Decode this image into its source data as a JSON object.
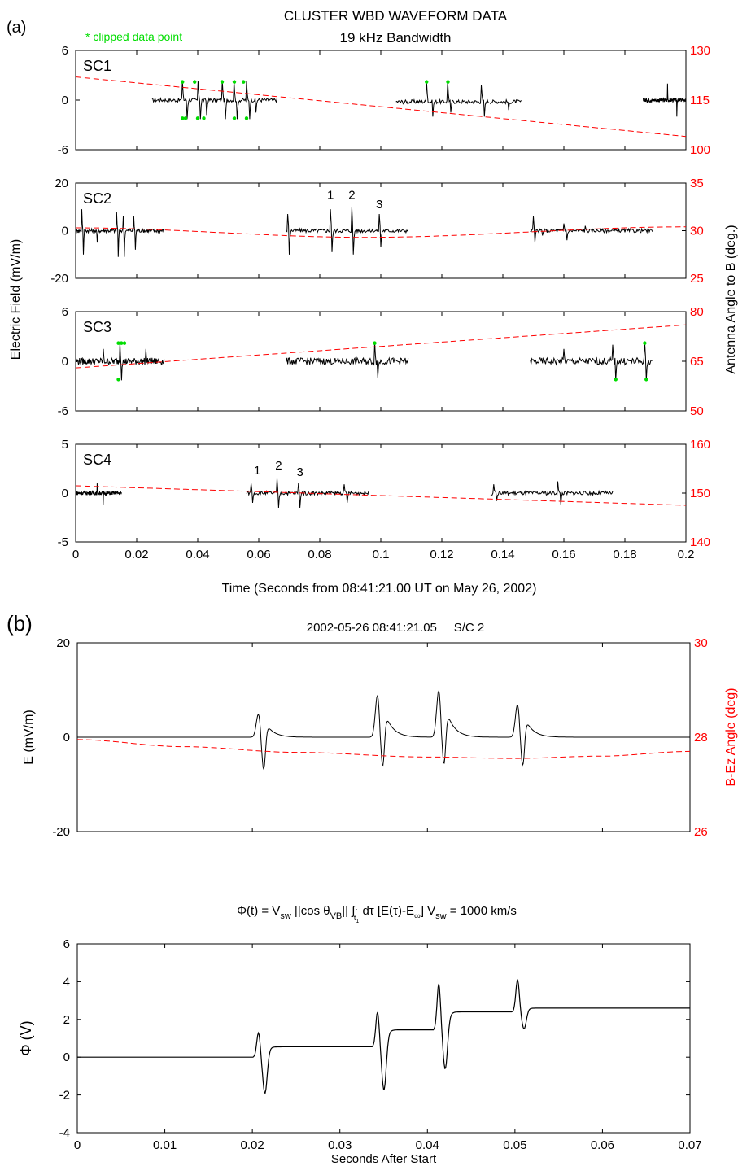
{
  "figure": {
    "title_line1": "CLUSTER WBD WAVEFORM DATA",
    "title_line2": "19 kHz Bandwidth",
    "label_a": "(a)",
    "label_b": "(b)",
    "clipped_note": "* clipped data point",
    "left_ylabel_a": "Electric Field (mV/m)",
    "right_ylabel_a": "Antenna Angle to B (deg.)",
    "xlabel_a": "Time (Seconds from 08:41:21.00 UT on May 26, 2002)",
    "title_b": "2002-05-26 08:41:21.05     S/C 2",
    "phi_formula": "Φ(t) = V_sw ||cos θ_VB|| ∫_t1^t dτ [E(τ)-E_∞]     V_sw = 1000 km/s",
    "xlabel_b": "Seconds After Start"
  },
  "chart_data": [
    {
      "type": "line",
      "title": "SC1",
      "ylabel": "Electric Field (mV/m)",
      "ylim": [
        -6,
        6
      ],
      "yticks": [
        -6,
        0,
        6
      ],
      "y2lim": [
        100,
        130
      ],
      "y2ticks": [
        100,
        115,
        130
      ],
      "xlim": [
        0,
        0.2
      ],
      "segments": [
        [
          0.025,
          0.066
        ],
        [
          0.105,
          0.146
        ],
        [
          0.186,
          0.2
        ]
      ],
      "series": [
        {
          "name": "",
          "color": "#000000",
          "spikes": [
            [
              0.035,
              2.3
            ],
            [
              0.0365,
              -2.3
            ],
            [
              0.04,
              2.3
            ],
            [
              0.041,
              -2.3
            ],
            [
              0.043,
              -1.8
            ],
            [
              0.048,
              2.3
            ],
            [
              0.049,
              -2.3
            ],
            [
              0.052,
              2.3
            ],
            [
              0.053,
              -2.3
            ],
            [
              0.056,
              2.3
            ],
            [
              0.057,
              -2.3
            ],
            [
              0.059,
              -1.5
            ],
            [
              0.115,
              2.3
            ],
            [
              0.117,
              -2.0
            ],
            [
              0.122,
              2.3
            ],
            [
              0.123,
              -1.5
            ],
            [
              0.133,
              1.8
            ],
            [
              0.134,
              -2.0
            ],
            [
              0.142,
              -1.2
            ],
            [
              0.194,
              2.0
            ],
            [
              0.197,
              -2.0
            ]
          ]
        },
        {
          "name": "",
          "color": "#ff0000",
          "dashed": true,
          "axis": "right",
          "x": [
            0,
            0.2
          ],
          "y": [
            122,
            104
          ]
        }
      ],
      "clipped_points": [
        [
          0.035,
          2.2
        ],
        [
          0.035,
          -2.2
        ],
        [
          0.036,
          -2.2
        ],
        [
          0.039,
          2.2
        ],
        [
          0.04,
          -2.2
        ],
        [
          0.042,
          -2.2
        ],
        [
          0.048,
          2.2
        ],
        [
          0.052,
          2.2
        ],
        [
          0.052,
          -2.2
        ],
        [
          0.055,
          2.2
        ],
        [
          0.056,
          -2.2
        ],
        [
          0.115,
          2.2
        ],
        [
          0.122,
          2.2
        ]
      ]
    },
    {
      "type": "line",
      "title": "SC2",
      "ylim": [
        -20,
        20
      ],
      "yticks": [
        -20,
        0,
        20
      ],
      "y2lim": [
        25,
        35
      ],
      "y2ticks": [
        25,
        30,
        35
      ],
      "xlim": [
        0,
        0.2
      ],
      "segments": [
        [
          0,
          0.029
        ],
        [
          0.069,
          0.109
        ],
        [
          0.149,
          0.189
        ]
      ],
      "annotations": [
        {
          "text": "1",
          "x": 0.0835,
          "y": 12
        },
        {
          "text": "2",
          "x": 0.0905,
          "y": 12
        },
        {
          "text": "3",
          "x": 0.0995,
          "y": 8
        }
      ],
      "series": [
        {
          "name": "",
          "color": "#000000",
          "spikes": [
            [
              0.002,
              9
            ],
            [
              0.0025,
              -10
            ],
            [
              0.007,
              -5
            ],
            [
              0.0135,
              8
            ],
            [
              0.014,
              -11
            ],
            [
              0.0155,
              6
            ],
            [
              0.016,
              -11
            ],
            [
              0.019,
              6
            ],
            [
              0.0195,
              -8
            ],
            [
              0.0695,
              7
            ],
            [
              0.07,
              -10
            ],
            [
              0.0835,
              9
            ],
            [
              0.084,
              -9
            ],
            [
              0.0905,
              10
            ],
            [
              0.091,
              -10
            ],
            [
              0.0995,
              7
            ],
            [
              0.1,
              -7
            ],
            [
              0.15,
              6
            ],
            [
              0.1505,
              -5
            ],
            [
              0.153,
              -2
            ],
            [
              0.16,
              3
            ],
            [
              0.161,
              -4
            ],
            [
              0.167,
              2
            ]
          ]
        },
        {
          "name": "",
          "color": "#ff0000",
          "dashed": true,
          "axis": "right",
          "x": [
            0,
            0.095,
            0.2
          ],
          "y": [
            30.3,
            29.3,
            30.4
          ]
        }
      ]
    },
    {
      "type": "line",
      "title": "SC3",
      "ylim": [
        -6,
        6
      ],
      "yticks": [
        -6,
        0,
        6
      ],
      "y2lim": [
        50,
        80
      ],
      "y2ticks": [
        50,
        65,
        80
      ],
      "xlim": [
        0,
        0.2
      ],
      "segments": [
        [
          0,
          0.029
        ],
        [
          0.069,
          0.109
        ],
        [
          0.149,
          0.189
        ]
      ],
      "series": [
        {
          "name": "",
          "color": "#000000",
          "spikes": [
            [
              0.0145,
              2.3
            ],
            [
              0.015,
              -2.3
            ],
            [
              0.009,
              1.5
            ],
            [
              0.023,
              1.5
            ],
            [
              0.098,
              2.3
            ],
            [
              0.099,
              -2.0
            ],
            [
              0.16,
              1.5
            ],
            [
              0.176,
              2.0
            ],
            [
              0.177,
              -2.3
            ],
            [
              0.1865,
              2.3
            ],
            [
              0.187,
              -2.3
            ]
          ]
        },
        {
          "name": "",
          "color": "#ff0000",
          "dashed": true,
          "axis": "right",
          "x": [
            0,
            0.2
          ],
          "y": [
            63,
            76
          ]
        }
      ],
      "clipped_points": [
        [
          0.014,
          2.2
        ],
        [
          0.015,
          2.2
        ],
        [
          0.016,
          2.2
        ],
        [
          0.014,
          -2.2
        ],
        [
          0.098,
          2.2
        ],
        [
          0.177,
          -2.2
        ],
        [
          0.1865,
          2.2
        ],
        [
          0.187,
          -2.2
        ]
      ]
    },
    {
      "type": "line",
      "title": "SC4",
      "ylim": [
        -5,
        5
      ],
      "yticks": [
        -5,
        0,
        5
      ],
      "y2lim": [
        140,
        160
      ],
      "y2ticks": [
        140,
        150,
        160
      ],
      "xlim": [
        0,
        0.2
      ],
      "segments": [
        [
          0,
          0.015
        ],
        [
          0.056,
          0.096
        ],
        [
          0.136,
          0.176
        ]
      ],
      "annotations": [
        {
          "text": "1",
          "x": 0.0595,
          "y": 1.6
        },
        {
          "text": "2",
          "x": 0.0665,
          "y": 2.1
        },
        {
          "text": "3",
          "x": 0.0735,
          "y": 1.4
        }
      ],
      "series": [
        {
          "name": "",
          "color": "#000000",
          "spikes": [
            [
              0.007,
              1.0
            ],
            [
              0.009,
              -1.2
            ],
            [
              0.0575,
              1.0
            ],
            [
              0.058,
              -1.0
            ],
            [
              0.066,
              1.5
            ],
            [
              0.0665,
              -1.5
            ],
            [
              0.073,
              1.0
            ],
            [
              0.0735,
              -1.5
            ],
            [
              0.088,
              0.9
            ],
            [
              0.089,
              -1.0
            ],
            [
              0.137,
              0.9
            ],
            [
              0.138,
              -0.8
            ],
            [
              0.158,
              1.2
            ],
            [
              0.159,
              -1.2
            ]
          ]
        },
        {
          "name": "",
          "color": "#ff0000",
          "dashed": true,
          "axis": "right",
          "x": [
            0,
            0.2
          ],
          "y": [
            151.5,
            147.5
          ]
        }
      ]
    },
    {
      "type": "line",
      "title": "2002-05-26 08:41:21.05     S/C 2",
      "ylabel": "E (mV/m)",
      "ylim": [
        -20,
        20
      ],
      "yticks": [
        -20,
        0,
        20
      ],
      "y2label": "B-Ez Angle (deg)",
      "y2lim": [
        26,
        30
      ],
      "y2ticks": [
        26,
        28,
        30
      ],
      "xlim": [
        0,
        0.07
      ],
      "series": [
        {
          "name": "",
          "color": "#000000",
          "pulses": [
            [
              0.0207,
              5,
              -9
            ],
            [
              0.0343,
              9,
              -10
            ],
            [
              0.0413,
              10,
              -10
            ],
            [
              0.0503,
              7,
              -9
            ]
          ]
        },
        {
          "name": "",
          "color": "#ff0000",
          "dashed": true,
          "axis": "right",
          "x": [
            0,
            0.012,
            0.025,
            0.04,
            0.05,
            0.06,
            0.07
          ],
          "y": [
            27.95,
            27.8,
            27.68,
            27.58,
            27.55,
            27.6,
            27.7
          ]
        }
      ]
    },
    {
      "type": "line",
      "ylabel": "Φ (V)",
      "xlabel": "Seconds After Start",
      "ylim": [
        -4,
        6
      ],
      "yticks": [
        -4,
        -2,
        0,
        2,
        4,
        6
      ],
      "xlim": [
        0,
        0.07
      ],
      "xticks": [
        0,
        0.01,
        0.02,
        0.03,
        0.04,
        0.05,
        0.06,
        0.07
      ],
      "series": [
        {
          "name": "",
          "color": "#000000",
          "steps": [
            [
              0.0207,
              1.3,
              -2.05,
              0.55
            ],
            [
              0.0343,
              2.4,
              -1.95,
              1.45
            ],
            [
              0.0413,
              3.9,
              -0.85,
              2.4
            ],
            [
              0.0503,
              4.1,
              1.45,
              2.6
            ]
          ]
        }
      ]
    }
  ]
}
